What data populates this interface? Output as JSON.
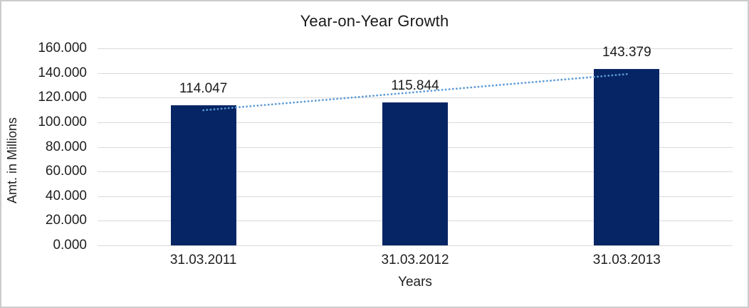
{
  "window": {
    "background_color": "#ffffff",
    "frame_border_color": "#cccccc"
  },
  "chart_data": {
    "type": "bar",
    "title": "Year-on-Year Growth",
    "xlabel": "Years",
    "ylabel": "Amt. in Millions",
    "categories": [
      "31.03.2011",
      "31.03.2012",
      "31.03.2013"
    ],
    "series": [
      {
        "name": "Amt. in Millions",
        "type": "bar",
        "values": [
          114.047,
          115.844,
          143.379
        ],
        "labels": [
          "114.047",
          "115.844",
          "143.379"
        ],
        "color": "#062564"
      }
    ],
    "trendline": {
      "fit": "linear",
      "style": "dotted",
      "color": "#5b9bd5"
    },
    "ylim": [
      0,
      160
    ],
    "ytick_step": 20,
    "yticks": [
      {
        "v": 160,
        "label": "160.000"
      },
      {
        "v": 140,
        "label": "140.000"
      },
      {
        "v": 120,
        "label": "120.000"
      },
      {
        "v": 100,
        "label": "100.000"
      },
      {
        "v": 80,
        "label": "80.000"
      },
      {
        "v": 60,
        "label": "60.000"
      },
      {
        "v": 40,
        "label": "40.000"
      },
      {
        "v": 20,
        "label": "20.000"
      },
      {
        "v": 0,
        "label": "0.000"
      }
    ],
    "grid": true,
    "gridline_color": "#d9d9d9",
    "legend_position": "none"
  }
}
